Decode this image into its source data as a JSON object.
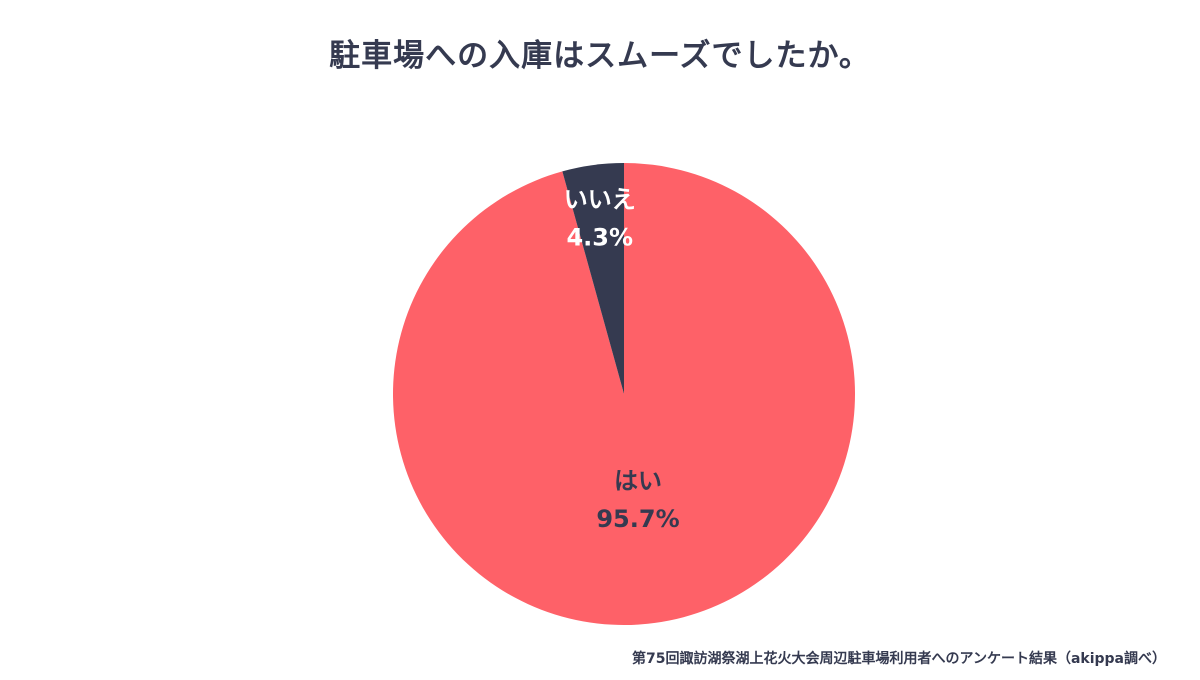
{
  "title": "駐車場への入庫はスムーズでしたか。",
  "source": "第75回諏訪湖祭湖上花火大会周辺駐車場利用者へのアンケート結果（akippa調べ）",
  "chart_data": {
    "type": "pie",
    "title": "駐車場への入庫はスムーズでしたか。",
    "start": "12 o'clock",
    "direction": "clockwise",
    "slices": [
      {
        "label": "はい",
        "value": 95.7,
        "value_label": "95.7%",
        "color": "#fe6168",
        "label_color": "#353a50"
      },
      {
        "label": "いいえ",
        "value": 4.3,
        "value_label": "4.3%",
        "color": "#353a50",
        "label_color": "#ffffff"
      }
    ]
  }
}
